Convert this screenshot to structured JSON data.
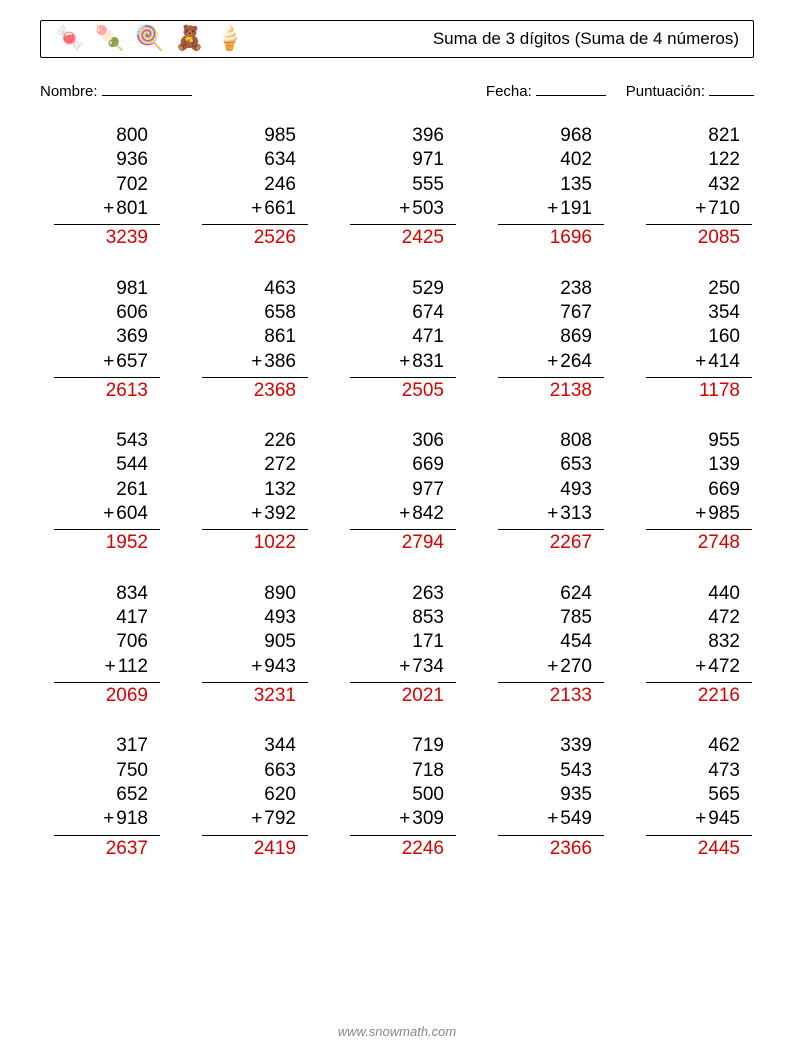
{
  "header": {
    "icons": [
      "🍬",
      "🍡",
      "🍭",
      "🧸",
      "🍦"
    ],
    "title": "Suma de 3 dígitos (Suma de 4 números)"
  },
  "labels": {
    "name": "Nombre:",
    "date": "Fecha:",
    "score": "Puntuación:"
  },
  "style": {
    "answer_color": "#d80000",
    "text_color": "#000000",
    "background": "#ffffff",
    "font_size_problem": 19,
    "columns": 5,
    "rows": 5,
    "operator": "+"
  },
  "problems": [
    {
      "nums": [
        800,
        936,
        702,
        801
      ],
      "ans": 3239
    },
    {
      "nums": [
        985,
        634,
        246,
        661
      ],
      "ans": 2526
    },
    {
      "nums": [
        396,
        971,
        555,
        503
      ],
      "ans": 2425
    },
    {
      "nums": [
        968,
        402,
        135,
        191
      ],
      "ans": 1696
    },
    {
      "nums": [
        821,
        122,
        432,
        710
      ],
      "ans": 2085
    },
    {
      "nums": [
        981,
        606,
        369,
        657
      ],
      "ans": 2613
    },
    {
      "nums": [
        463,
        658,
        861,
        386
      ],
      "ans": 2368
    },
    {
      "nums": [
        529,
        674,
        471,
        831
      ],
      "ans": 2505
    },
    {
      "nums": [
        238,
        767,
        869,
        264
      ],
      "ans": 2138
    },
    {
      "nums": [
        250,
        354,
        160,
        414
      ],
      "ans": 1178
    },
    {
      "nums": [
        543,
        544,
        261,
        604
      ],
      "ans": 1952
    },
    {
      "nums": [
        226,
        272,
        132,
        392
      ],
      "ans": 1022
    },
    {
      "nums": [
        306,
        669,
        977,
        842
      ],
      "ans": 2794
    },
    {
      "nums": [
        808,
        653,
        493,
        313
      ],
      "ans": 2267
    },
    {
      "nums": [
        955,
        139,
        669,
        985
      ],
      "ans": 2748
    },
    {
      "nums": [
        834,
        417,
        706,
        112
      ],
      "ans": 2069
    },
    {
      "nums": [
        890,
        493,
        905,
        943
      ],
      "ans": 3231
    },
    {
      "nums": [
        263,
        853,
        171,
        734
      ],
      "ans": 2021
    },
    {
      "nums": [
        624,
        785,
        454,
        270
      ],
      "ans": 2133
    },
    {
      "nums": [
        440,
        472,
        832,
        472
      ],
      "ans": 2216
    },
    {
      "nums": [
        317,
        750,
        652,
        918
      ],
      "ans": 2637
    },
    {
      "nums": [
        344,
        663,
        620,
        792
      ],
      "ans": 2419
    },
    {
      "nums": [
        719,
        718,
        500,
        309
      ],
      "ans": 2246
    },
    {
      "nums": [
        339,
        543,
        935,
        549
      ],
      "ans": 2366
    },
    {
      "nums": [
        462,
        473,
        565,
        945
      ],
      "ans": 2445
    }
  ],
  "footer": "www.snowmath.com"
}
